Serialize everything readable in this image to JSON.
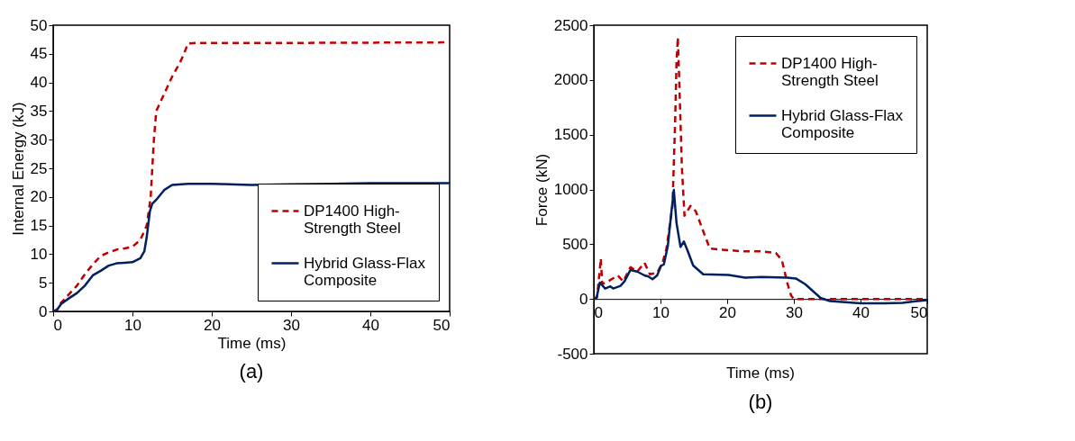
{
  "chart_data": [
    {
      "type": "line",
      "title": "(a)",
      "xlabel": "Time (ms)",
      "ylabel": "Internal Energy (kJ)",
      "xlim": [
        0,
        50
      ],
      "xticks": [
        0,
        10,
        20,
        30,
        40,
        50
      ],
      "ylim": [
        0,
        50
      ],
      "yticks": [
        0,
        5,
        10,
        15,
        20,
        25,
        30,
        35,
        40,
        45,
        50
      ],
      "grid": false,
      "legend": "bottom right",
      "series": [
        {
          "name": "DP1400 High-Strength Steel",
          "color": "#c00000",
          "line_style": "dashed",
          "x": [
            0,
            0.5,
            1,
            2,
            3,
            4,
            5,
            6,
            7,
            8,
            9,
            10,
            11,
            11.8,
            12.3,
            12.7,
            13,
            14,
            15,
            16,
            16.5,
            17,
            18,
            30,
            50
          ],
          "values": [
            0,
            0.3,
            1.5,
            3,
            4.5,
            6.5,
            8.2,
            9.7,
            10.3,
            10.8,
            11,
            11.3,
            12.5,
            15,
            20,
            30,
            35,
            38,
            41,
            43.5,
            45,
            46.8,
            46.9,
            46.9,
            47
          ]
        },
        {
          "name": "Hybrid Glass-Flax Composite",
          "color": "#002060",
          "line_style": "solid",
          "x": [
            0,
            0.5,
            1,
            2,
            3,
            4,
            5,
            6,
            7,
            8,
            9,
            10,
            11,
            11.5,
            11.8,
            12.2,
            12.5,
            13,
            14,
            15,
            17,
            20,
            25,
            30,
            35,
            40,
            50
          ],
          "values": [
            0,
            0.3,
            1.3,
            2.3,
            3.2,
            4.5,
            6.3,
            7.1,
            8.0,
            8.4,
            8.5,
            8.6,
            9.3,
            10.5,
            13,
            17.5,
            18.8,
            19.5,
            21.2,
            22.1,
            22.3,
            22.3,
            22.1,
            22.2,
            22.3,
            22.4,
            22.4
          ]
        }
      ]
    },
    {
      "type": "line",
      "title": "(b)",
      "xlabel": "Time (ms)",
      "ylabel": "Force (kN)",
      "xlim": [
        0,
        50
      ],
      "xticks": [
        0,
        10,
        20,
        30,
        40,
        50
      ],
      "ylim": [
        -500,
        2500
      ],
      "yticks": [
        -500,
        0,
        500,
        1000,
        1500,
        2000,
        2500
      ],
      "grid": false,
      "legend": "top right",
      "series": [
        {
          "name": "DP1400 High-Strength Steel",
          "color": "#c00000",
          "line_style": "dashed",
          "x": [
            0,
            0.5,
            1.05,
            1.26,
            2.1,
            3.6,
            4.4,
            5.5,
            6.5,
            7.6,
            8.4,
            9.5,
            10.3,
            10.9,
            11.8,
            12.2,
            12.4,
            12.6,
            12.8,
            13.2,
            13.6,
            14.5,
            15.3,
            16.4,
            17.4,
            19.3,
            22.3,
            25.2,
            27.3,
            28.2,
            29,
            29.6,
            30,
            50
          ],
          "values": [
            0,
            20,
            370,
            135,
            160,
            215,
            160,
            290,
            250,
            330,
            225,
            240,
            330,
            460,
            850,
            1630,
            2150,
            2390,
            2020,
            1215,
            760,
            850,
            800,
            620,
            460,
            450,
            435,
            435,
            420,
            355,
            150,
            30,
            0,
            0
          ]
        },
        {
          "name": "Hybrid Glass-Flax Composite",
          "color": "#002060",
          "line_style": "solid",
          "x": [
            0,
            0.4,
            0.9,
            1.7,
            2.5,
            2.9,
            4,
            4.6,
            5.5,
            6.5,
            7.6,
            8.2,
            8.8,
            9.5,
            10.1,
            10.5,
            11.1,
            11.6,
            12,
            12.4,
            13,
            13.5,
            14.1,
            14.9,
            16.4,
            20.2,
            22.7,
            25.2,
            29,
            30.3,
            31.7,
            34,
            35.4,
            40,
            43.6,
            46.3,
            50
          ],
          "values": [
            0,
            5,
            150,
            95,
            115,
            95,
            120,
            160,
            265,
            250,
            215,
            205,
            180,
            215,
            305,
            315,
            485,
            775,
            995,
            695,
            475,
            525,
            435,
            305,
            225,
            220,
            195,
            200,
            195,
            187,
            135,
            10,
            -20,
            -40,
            -40,
            -35,
            -10
          ]
        }
      ]
    }
  ]
}
